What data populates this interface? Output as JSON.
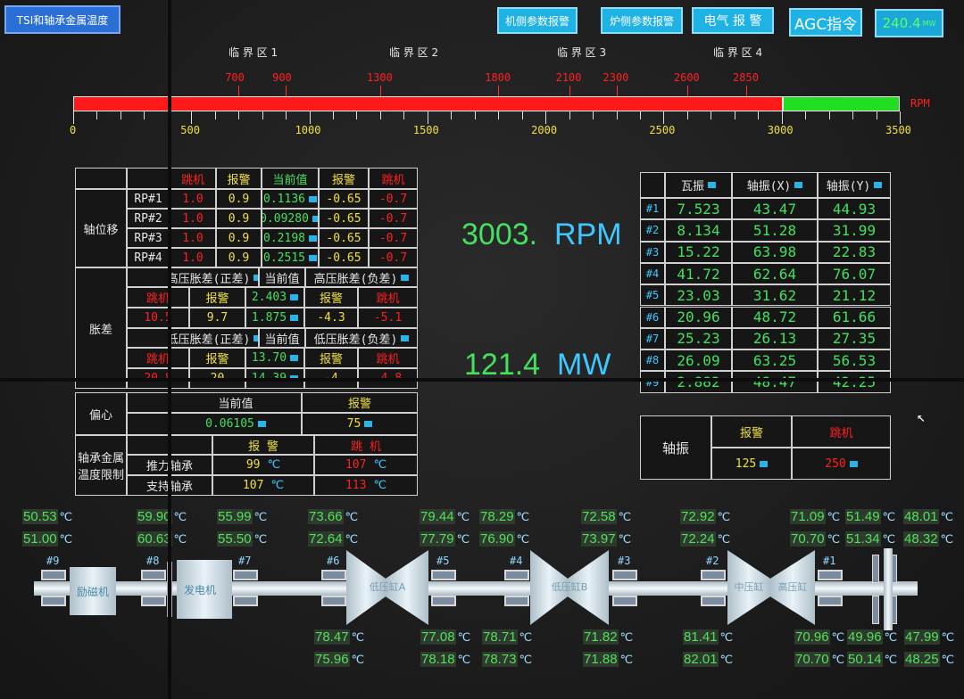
{
  "header": {
    "title": "TSI和轴承金属温度",
    "buttons": [
      "机侧参数报警",
      "炉侧参数报警",
      "电气 报 警"
    ],
    "agc_label": "AGC指令",
    "agc_value": "240.4",
    "agc_unit": "MW"
  },
  "rpm_scale": {
    "unit": "RPM",
    "min": 0,
    "max": 3500,
    "current_rpm": 3003,
    "ticks": [
      "0",
      "500",
      "1000",
      "1500",
      "2000",
      "2500",
      "3000",
      "3500"
    ],
    "critical_zones": [
      "临 界 区 1",
      "临 界 区 2",
      "临 界 区 3",
      "临 界 区 4"
    ],
    "critical_speeds": [
      "700",
      "900",
      "1300",
      "1800",
      "2100",
      "2300",
      "2600",
      "2850"
    ],
    "colors": {
      "below": "#ff1a1a",
      "above": "#22dd22"
    }
  },
  "center": {
    "rpm_value": "3003.",
    "rpm_unit": "RPM",
    "mw_value": "121.4",
    "mw_unit": "MW"
  },
  "left_table": {
    "header": [
      "跳机",
      "报警",
      "当前值",
      "报警",
      "跳机"
    ],
    "axial_label": "轴位移",
    "axial_rows": [
      [
        "RP#1",
        "1.0",
        "0.9",
        "0.1136",
        "-0.65",
        "-0.7"
      ],
      [
        "RP#2",
        "1.0",
        "0.9",
        "0.09280",
        "-0.65",
        "-0.7"
      ],
      [
        "RP#3",
        "1.0",
        "0.9",
        "0.2198",
        "-0.65",
        "-0.7"
      ],
      [
        "RP#4",
        "1.0",
        "0.9",
        "0.2515",
        "-0.65",
        "-0.7"
      ]
    ],
    "diff_label": "胀差",
    "hp": {
      "pos_label": "高压胀差(正差)",
      "cur_label": "当前值",
      "neg_label": "高压胀差(负差)",
      "sub": [
        "跳机",
        "报警",
        "2.403",
        "报警",
        "跳机"
      ],
      "vals": [
        "10.5",
        "9.7",
        "1.875",
        "-4.3",
        "-5.1"
      ]
    },
    "lp": {
      "pos_label": "低压胀差(正差)",
      "cur_label": "当前值",
      "neg_label": "低压胀差(负差)",
      "sub": [
        "跳机",
        "报警",
        "13.70",
        "报警",
        "跳机"
      ],
      "vals": [
        "20.8",
        "20",
        "14.39",
        "-4",
        "-4.8"
      ]
    },
    "ecc": {
      "label": "偏心",
      "cur_label": "当前值",
      "alarm_label": "报警",
      "cur": "0.06105",
      "alarm": "75"
    },
    "bearing": {
      "label": "轴承金属温度限制",
      "alarm_label": "报 警",
      "trip_label": "跳 机",
      "rows": [
        [
          "推力轴承",
          "99",
          "107"
        ],
        [
          "支持轴承",
          "107",
          "113"
        ]
      ],
      "unit": "℃"
    }
  },
  "right_table": {
    "headers": [
      "瓦振",
      "轴振(X)",
      "轴振(Y)"
    ],
    "rows": [
      [
        "#1",
        "7.523",
        "43.47",
        "44.93"
      ],
      [
        "#2",
        "8.134",
        "51.28",
        "31.99"
      ],
      [
        "#3",
        "15.22",
        "63.98",
        "22.83"
      ],
      [
        "#4",
        "41.72",
        "62.64",
        "76.07"
      ],
      [
        "#5",
        "23.03",
        "31.62",
        "21.12"
      ],
      [
        "#6",
        "20.96",
        "48.72",
        "61.66"
      ],
      [
        "#7",
        "25.23",
        "26.13",
        "27.35"
      ],
      [
        "#8",
        "26.09",
        "63.25",
        "56.53"
      ],
      [
        "#9",
        "2.882",
        "48.47",
        "42.25"
      ]
    ],
    "shaft_label": "轴振",
    "alarm_label": "报警",
    "trip_label": "跳机",
    "alarm": "125",
    "trip": "250"
  },
  "train": {
    "unit": "℃",
    "machines": [
      "励磁机",
      "发电机",
      "低压缸A",
      "低压缸B",
      "中压缸",
      "高压缸"
    ],
    "bearings": [
      "#9",
      "#8",
      "#7",
      "#6",
      "#5",
      "#4",
      "#3",
      "#2",
      "#1"
    ],
    "temps_top": [
      [
        "50.53",
        "51.00"
      ],
      [
        "59.90",
        "60.63"
      ],
      [
        "55.99",
        "55.50"
      ],
      [
        "73.66",
        "72.64"
      ],
      [
        "79.44",
        "77.79"
      ],
      [
        "78.29",
        "76.90"
      ],
      [
        "72.58",
        "73.97"
      ],
      [
        "72.92",
        "72.24"
      ],
      [
        "71.09",
        "70.70"
      ],
      [
        "51.49",
        "51.34"
      ],
      [
        "48.01",
        "48.32"
      ]
    ],
    "temps_bottom": [
      [
        "78.47",
        "75.96"
      ],
      [
        "77.08",
        "78.18"
      ],
      [
        "78.71",
        "78.73"
      ],
      [
        "71.82",
        "71.88"
      ],
      [
        "81.41",
        "82.01"
      ],
      [
        "70.96",
        "70.70"
      ],
      [
        "49.96",
        "50.14"
      ],
      [
        "47.99",
        "48.25"
      ]
    ]
  }
}
